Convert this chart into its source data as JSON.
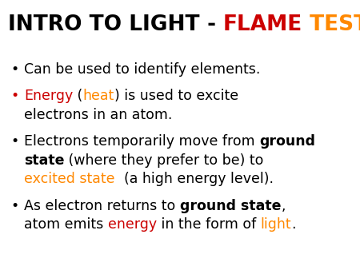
{
  "bg_color": "#ffffff",
  "title_parts": [
    {
      "text": "INTRO TO LIGHT",
      "color": "#000000"
    },
    {
      "text": " - ",
      "color": "#000000"
    },
    {
      "text": "FLAME",
      "color": "#cc0000"
    },
    {
      "text": " TEST",
      "color": "#ff8800"
    }
  ],
  "bullets": [
    {
      "bullet_color": "#000000",
      "lines": [
        [
          {
            "text": "Can be used to identify elements.",
            "color": "#000000",
            "bold": false
          }
        ]
      ]
    },
    {
      "bullet_color": "#cc0000",
      "lines": [
        [
          {
            "text": "Energy",
            "color": "#cc0000",
            "bold": false
          },
          {
            "text": " (",
            "color": "#000000",
            "bold": false
          },
          {
            "text": "heat",
            "color": "#ff8800",
            "bold": false
          },
          {
            "text": ") is used to excite",
            "color": "#000000",
            "bold": false
          }
        ],
        [
          {
            "text": "electrons in an atom.",
            "color": "#000000",
            "bold": false
          }
        ]
      ]
    },
    {
      "bullet_color": "#000000",
      "lines": [
        [
          {
            "text": "Electrons temporarily move from ",
            "color": "#000000",
            "bold": false
          },
          {
            "text": "ground",
            "color": "#000000",
            "bold": true
          }
        ],
        [
          {
            "text": "state",
            "color": "#000000",
            "bold": true
          },
          {
            "text": " (where they prefer to be) to",
            "color": "#000000",
            "bold": false
          }
        ],
        [
          {
            "text": "excited state",
            "color": "#ff8800",
            "bold": false
          },
          {
            "text": "  (a high energy level).",
            "color": "#000000",
            "bold": false
          }
        ]
      ]
    },
    {
      "bullet_color": "#000000",
      "lines": [
        [
          {
            "text": "As electron returns to ",
            "color": "#000000",
            "bold": false
          },
          {
            "text": "ground state",
            "color": "#000000",
            "bold": true
          },
          {
            "text": ",",
            "color": "#000000",
            "bold": false
          }
        ],
        [
          {
            "text": "atom emits ",
            "color": "#000000",
            "bold": false
          },
          {
            "text": "energy",
            "color": "#cc0000",
            "bold": false
          },
          {
            "text": " in the form of ",
            "color": "#000000",
            "bold": false
          },
          {
            "text": "light",
            "color": "#ff8800",
            "bold": false
          },
          {
            "text": ".",
            "color": "#000000",
            "bold": false
          }
        ]
      ]
    }
  ],
  "title_fontsize": 19,
  "body_fontsize": 12.5,
  "title_font": "Impact",
  "body_font": "Comic Sans MS"
}
